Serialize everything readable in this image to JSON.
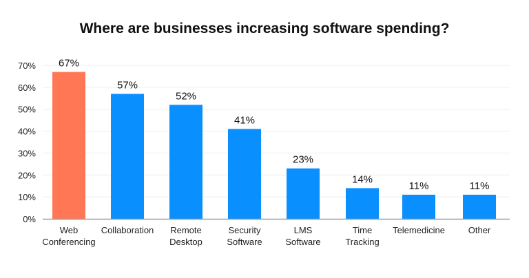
{
  "chart_data": {
    "type": "bar",
    "title": "Where are businesses increasing software spending?",
    "xlabel": "",
    "ylabel": "",
    "categories": [
      [
        "Web",
        "Conferencing"
      ],
      [
        "Collaboration"
      ],
      [
        "Remote",
        "Desktop"
      ],
      [
        "Security",
        "Software"
      ],
      [
        "LMS",
        "Software"
      ],
      [
        "Time",
        "Tracking"
      ],
      [
        "Telemedicine"
      ],
      [
        "Other"
      ]
    ],
    "category_names": [
      "Web Conferencing",
      "Collaboration",
      "Remote Desktop",
      "Security Software",
      "LMS Software",
      "Time Tracking",
      "Telemedicine",
      "Other"
    ],
    "values": [
      67,
      57,
      52,
      41,
      23,
      14,
      11,
      11
    ],
    "data_labels": [
      "67%",
      "57%",
      "52%",
      "41%",
      "23%",
      "14%",
      "11%",
      "11%"
    ],
    "ylim": [
      0,
      70
    ],
    "yticks": [
      0,
      10,
      20,
      30,
      40,
      50,
      60,
      70
    ],
    "ytick_labels": [
      "0%",
      "10%",
      "20%",
      "30%",
      "40%",
      "50%",
      "60%",
      "70%"
    ],
    "grid": true,
    "legend": "none",
    "colors": {
      "highlight": "#FF7755",
      "default": "#0A8FFF",
      "grid": "#EEEEEE",
      "axis": "#9A9AA8"
    },
    "highlight_index": 0
  }
}
